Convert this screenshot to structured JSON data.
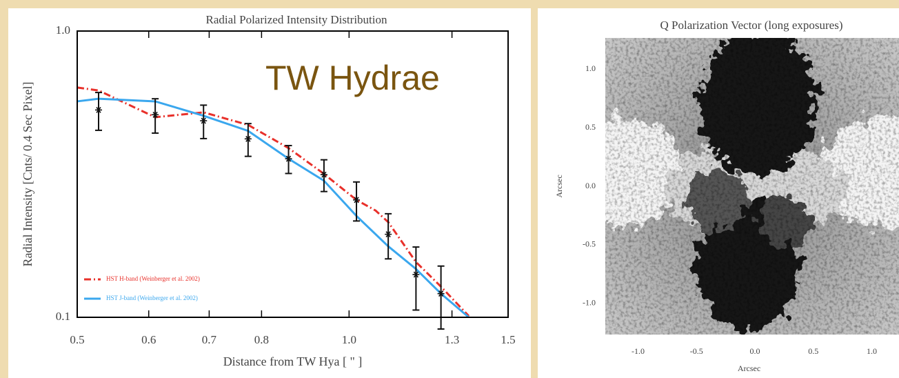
{
  "chart_data": [
    {
      "type": "line",
      "title": "Radial Polarized Intensity Distribution",
      "xlabel": "Distance from TW Hya [ \" ]",
      "ylabel": "Radial Intensity [Cnts/ 0.4 Sec Pixel]",
      "annotation": "TW Hydrae",
      "annotation_color": "#7a5510",
      "xscale": "log",
      "yscale": "log",
      "xlim": [
        0.5,
        1.5
      ],
      "ylim": [
        0.1,
        1.0
      ],
      "xticks": [
        0.5,
        0.6,
        0.7,
        0.8,
        {
          "value": 1,
          "label": "1.0"
        },
        1.3,
        1.5
      ],
      "yticks": [
        {
          "value": 1,
          "label": "1.0"
        },
        0.1
      ],
      "legend": "lower left",
      "series": [
        {
          "name": "HST H-band (Weinberger et al. 2002)",
          "color": "#e8302a",
          "style": "dash-dot",
          "x": [
            0.5,
            0.528,
            0.61,
            0.69,
            0.773,
            0.857,
            0.938,
            1.019,
            1.07,
            1.105,
            1.186,
            1.264,
            1.357
          ],
          "values": [
            0.635,
            0.62,
            0.5,
            0.52,
            0.47,
            0.39,
            0.317,
            0.257,
            0.236,
            0.215,
            0.156,
            0.128,
            0.101
          ]
        },
        {
          "name": "HST J-band (Weinberger et al. 2002)",
          "color": "#3aa7ee",
          "style": "solid",
          "x": [
            0.5,
            0.528,
            0.61,
            0.69,
            0.773,
            0.857,
            0.938,
            1.019,
            1.105,
            1.186,
            1.264,
            1.357
          ],
          "values": [
            0.568,
            0.58,
            0.568,
            0.506,
            0.448,
            0.358,
            0.3,
            0.226,
            0.177,
            0.1475,
            0.121,
            0.1
          ]
        }
      ],
      "measurements": {
        "color": "#111111",
        "x": [
          0.528,
          0.61,
          0.69,
          0.773,
          0.857,
          0.938,
          1.019,
          1.105,
          1.186,
          1.264
        ],
        "values": [
          0.53,
          0.51,
          0.486,
          0.42,
          0.358,
          0.315,
          0.257,
          0.195,
          0.141,
          0.121
        ],
        "errors": [
          0.08,
          0.07,
          0.065,
          0.055,
          0.04,
          0.04,
          0.04,
          0.035,
          0.035,
          0.03
        ]
      }
    },
    {
      "type": "image",
      "title": "Q Polarization Vector (long exposures)",
      "xlabel": "Arcsec",
      "ylabel": "Arcsec",
      "xlim": [
        -1.28,
        1.18
      ],
      "ylim": [
        -1.265,
        1.265
      ],
      "xticks": [
        {
          "value": -1,
          "label": "-1.0"
        },
        -0.5,
        {
          "value": 0,
          "label": "0.0"
        },
        0.5,
        {
          "value": 1,
          "label": "1.0"
        }
      ],
      "yticks": [
        {
          "value": 1,
          "label": "1.0"
        },
        0.5,
        {
          "value": 0,
          "label": "0.0"
        },
        -0.5,
        {
          "value": -1,
          "label": "-1.0"
        }
      ]
    }
  ]
}
